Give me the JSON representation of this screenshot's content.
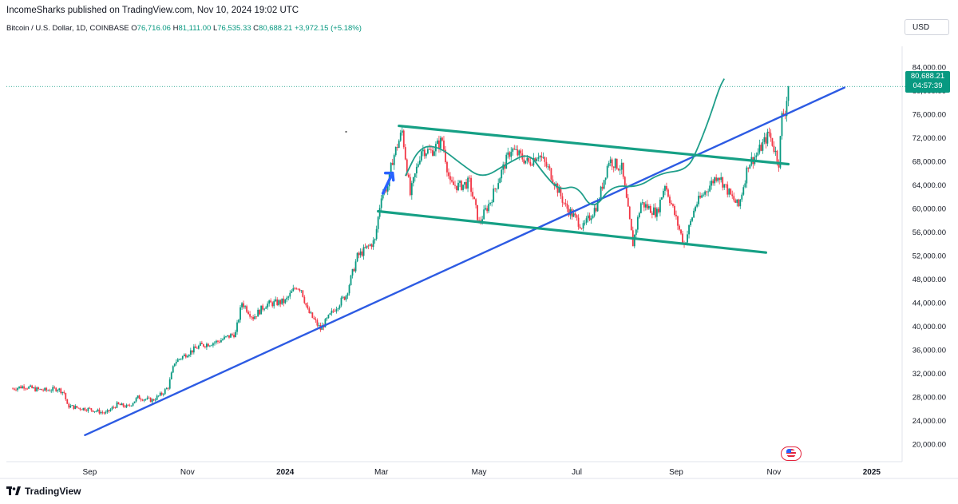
{
  "header": {
    "published": "IncomeSharks published on TradingView.com, Nov 10, 2024 19:02 UTC",
    "symbol": "Bitcoin / U.S. Dollar, 1D, COINBASE",
    "open_label": "O",
    "open": "76,716.06",
    "high_label": "H",
    "high": "81,111.00",
    "low_label": "L",
    "low": "76,535.33",
    "close_label": "C",
    "close": "80,688.21",
    "change": "+3,972.15 (+5.18%)",
    "currency": "USD"
  },
  "price_label": {
    "price": "80,688.21",
    "countdown": "04:57:39"
  },
  "footer": {
    "brand": "TradingView"
  },
  "colors": {
    "up": "#089981",
    "down": "#f23645",
    "trend_line": "#2d5be3",
    "channel": "#16a085",
    "curve": "#1f9e8a",
    "arrow": "#2962ff"
  },
  "chart_data": {
    "type": "candlestick",
    "title": "",
    "ylim": [
      17000,
      87500
    ],
    "yticks": [
      "84,000.00",
      "80,000.00",
      "76,000.00",
      "72,000.00",
      "68,000.00",
      "64,000.00",
      "60,000.00",
      "56,000.00",
      "52,000.00",
      "48,000.00",
      "44,000.00",
      "40,000.00",
      "36,000.00",
      "32,000.00",
      "28,000.00",
      "24,000.00",
      "20,000.00"
    ],
    "xticks": [
      "Sep",
      "Nov",
      "2024",
      "Mar",
      "May",
      "Jul",
      "Sep",
      "Nov",
      "2025"
    ],
    "x_range": [
      "2023-07-11",
      "2025-01-20"
    ],
    "last_price": 80688.21,
    "candles": [
      [
        "2023-07-15",
        29400
      ],
      [
        "2023-07-22",
        29800
      ],
      [
        "2023-07-29",
        29300
      ],
      [
        "2023-08-05",
        29100
      ],
      [
        "2023-08-12",
        29400
      ],
      [
        "2023-08-16",
        28700
      ],
      [
        "2023-08-18",
        26500
      ],
      [
        "2023-08-25",
        26100
      ],
      [
        "2023-09-01",
        25900
      ],
      [
        "2023-09-11",
        25200
      ],
      [
        "2023-09-18",
        26700
      ],
      [
        "2023-09-25",
        26300
      ],
      [
        "2023-10-01",
        27900
      ],
      [
        "2023-10-10",
        27400
      ],
      [
        "2023-10-16",
        28500
      ],
      [
        "2023-10-20",
        29700
      ],
      [
        "2023-10-24",
        33900
      ],
      [
        "2023-11-01",
        35400
      ],
      [
        "2023-11-09",
        36700
      ],
      [
        "2023-11-20",
        37400
      ],
      [
        "2023-12-01",
        38800
      ],
      [
        "2023-12-05",
        44000
      ],
      [
        "2023-12-12",
        41500
      ],
      [
        "2023-12-20",
        43700
      ],
      [
        "2024-01-01",
        44200
      ],
      [
        "2024-01-08",
        46800
      ],
      [
        "2024-01-11",
        46300
      ],
      [
        "2024-01-15",
        42600
      ],
      [
        "2024-01-23",
        39500
      ],
      [
        "2024-02-01",
        43000
      ],
      [
        "2024-02-08",
        45300
      ],
      [
        "2024-02-15",
        51800
      ],
      [
        "2024-02-26",
        54500
      ],
      [
        "2024-03-01",
        62400
      ],
      [
        "2024-03-05",
        63800
      ],
      [
        "2024-03-08",
        68300
      ],
      [
        "2024-03-14",
        73100
      ],
      [
        "2024-03-19",
        62300
      ],
      [
        "2024-03-26",
        70000
      ],
      [
        "2024-04-01",
        69600
      ],
      [
        "2024-04-08",
        71600
      ],
      [
        "2024-04-13",
        64000
      ],
      [
        "2024-04-19",
        63800
      ],
      [
        "2024-04-25",
        64400
      ],
      [
        "2024-05-01",
        57500
      ],
      [
        "2024-05-08",
        61200
      ],
      [
        "2024-05-15",
        66200
      ],
      [
        "2024-05-21",
        70100
      ],
      [
        "2024-06-01",
        67700
      ],
      [
        "2024-06-07",
        69300
      ],
      [
        "2024-06-14",
        66300
      ],
      [
        "2024-06-24",
        60300
      ],
      [
        "2024-07-05",
        56700
      ],
      [
        "2024-07-14",
        60800
      ],
      [
        "2024-07-21",
        68200
      ],
      [
        "2024-07-29",
        66800
      ],
      [
        "2024-08-05",
        54000
      ],
      [
        "2024-08-10",
        60900
      ],
      [
        "2024-08-20",
        59200
      ],
      [
        "2024-08-25",
        64200
      ],
      [
        "2024-09-06",
        53800
      ],
      [
        "2024-09-13",
        60500
      ],
      [
        "2024-09-20",
        63200
      ],
      [
        "2024-09-27",
        65800
      ],
      [
        "2024-10-05",
        62100
      ],
      [
        "2024-10-10",
        60300
      ],
      [
        "2024-10-16",
        67600
      ],
      [
        "2024-10-21",
        69000
      ],
      [
        "2024-10-29",
        72700
      ],
      [
        "2024-11-04",
        67800
      ],
      [
        "2024-11-06",
        75600
      ],
      [
        "2024-11-08",
        76500
      ],
      [
        "2024-11-10",
        80688
      ]
    ],
    "lines": [
      {
        "name": "",
        "points": [
          [
            "2023-08-29",
            21500
          ],
          [
            "2024-12-15",
            80500
          ]
        ]
      },
      {
        "name": "",
        "points": [
          [
            "2024-03-12",
            74000
          ],
          [
            "2024-11-10",
            67500
          ]
        ]
      },
      {
        "name": "",
        "points": [
          [
            "2024-02-28",
            59500
          ],
          [
            "2024-10-27",
            52500
          ]
        ]
      }
    ],
    "curve": [
      [
        "2024-03-16",
        65500
      ],
      [
        "2024-03-25",
        70500
      ],
      [
        "2024-04-06",
        70500
      ],
      [
        "2024-04-20",
        67500
      ],
      [
        "2024-05-03",
        65000
      ],
      [
        "2024-05-18",
        67500
      ],
      [
        "2024-06-01",
        69500
      ],
      [
        "2024-06-10",
        66000
      ],
      [
        "2024-06-20",
        63000
      ],
      [
        "2024-07-01",
        64000
      ],
      [
        "2024-07-11",
        59500
      ],
      [
        "2024-07-23",
        64000
      ],
      [
        "2024-08-08",
        63500
      ],
      [
        "2024-08-22",
        66000
      ],
      [
        "2024-09-08",
        66500
      ],
      [
        "2024-09-15",
        70500
      ],
      [
        "2024-09-22",
        75500
      ],
      [
        "2024-09-28",
        80500
      ],
      [
        "2024-10-01",
        82000
      ]
    ],
    "arrow": {
      "from": [
        "2024-03-01",
        63500
      ],
      "to": [
        "2024-03-08",
        66000
      ]
    },
    "marker_point": [
      "2024-02-08",
      73000
    ]
  }
}
